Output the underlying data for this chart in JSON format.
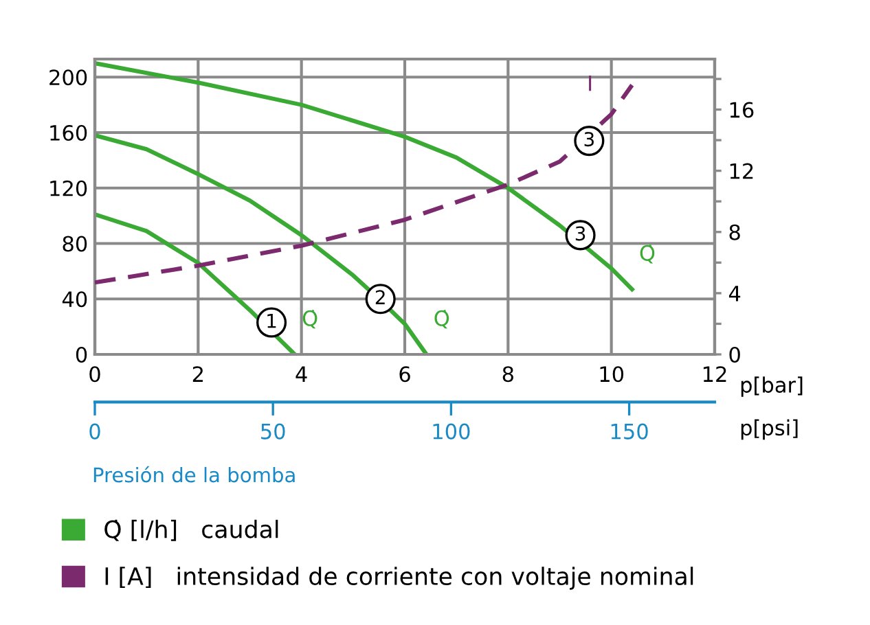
{
  "chart_data": {
    "type": "line",
    "xlabel": "p[bar]",
    "x2label": "p[psi]",
    "xlim": [
      0,
      12
    ],
    "xticks": [
      0,
      2,
      4,
      6,
      8,
      10,
      12
    ],
    "ylim": [
      0,
      213
    ],
    "yticks": [
      0,
      40,
      80,
      120,
      160,
      200
    ],
    "y2lim": [
      0,
      19.3
    ],
    "y2ticks": [
      0,
      {
        "value": 2,
        "label": null
      },
      4,
      {
        "value": 6,
        "label": null
      },
      8,
      {
        "value": 10,
        "label": null
      },
      12,
      {
        "value": 14,
        "label": null
      },
      16,
      {
        "value": 18,
        "label": null
      }
    ],
    "x2lim": [
      0,
      174
    ],
    "x2ticks": [
      0,
      50,
      100,
      150
    ],
    "grid": true,
    "legend": "bottom",
    "marker": "none",
    "series": [
      {
        "name": "Q̇ [l/h]   caudal",
        "color": "#3aaa35",
        "x": [
          0,
          1,
          2,
          3,
          3.87
        ],
        "values": [
          101,
          89,
          66,
          32,
          0
        ]
      },
      {
        "color": "#3aaa35",
        "x": [
          0,
          1,
          2,
          3,
          4,
          5,
          5.5,
          6,
          6.42
        ],
        "values": [
          158,
          148,
          130,
          111,
          86,
          57,
          40,
          22,
          0
        ]
      },
      {
        "color": "#3aaa35",
        "x": [
          0,
          2,
          4,
          6,
          7,
          8,
          9,
          10,
          10.4
        ],
        "values": [
          210,
          196,
          180,
          157,
          142,
          120,
          93,
          62,
          47
        ]
      },
      {
        "name": "I [A]   intensidad de corriente con voltaje nominal",
        "color": "#7b2a6e",
        "axis": "y2",
        "line_style": "dashed",
        "x": [
          0,
          2,
          4,
          6,
          8,
          9,
          10,
          10.4
        ],
        "values": [
          4.7,
          5.8,
          7.1,
          8.8,
          11.1,
          12.6,
          15.7,
          17.6
        ]
      }
    ],
    "annotations": [
      {
        "text": "1",
        "x": 3.42,
        "y": 23
      },
      {
        "text": "2",
        "x": 5.53,
        "y": 40
      },
      {
        "text": "3",
        "x": 9.4,
        "y": 86
      },
      {
        "text": "3",
        "x": 9.57,
        "y": 154
      },
      "Q̇",
      "Q̇",
      "Q̇",
      "I",
      "Presión de la bomba"
    ]
  }
}
